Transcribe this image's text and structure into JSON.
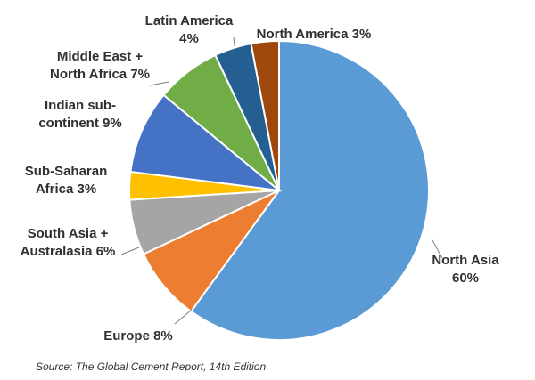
{
  "chart_data": {
    "type": "pie",
    "title": "",
    "start_angle_deg": 0,
    "direction": "clockwise",
    "slices": [
      {
        "label": "North Asia",
        "label_lines": [
          "North Asia",
          "60%"
        ],
        "value": 60,
        "color": "#5B9BD5"
      },
      {
        "label": "Europe",
        "label_lines": [
          "Europe 8%"
        ],
        "value": 8,
        "color": "#ED7D31"
      },
      {
        "label": "South Asia + Australasia",
        "label_lines": [
          "South Asia +",
          "Australasia 6%"
        ],
        "value": 6,
        "color": "#A5A5A5"
      },
      {
        "label": "Sub-Saharan Africa",
        "label_lines": [
          "Sub-Saharan",
          "Africa 3%"
        ],
        "value": 3,
        "color": "#FFC000"
      },
      {
        "label": "Indian sub-continent",
        "label_lines": [
          "Indian sub-",
          "continent 9%"
        ],
        "value": 9,
        "color": "#4472C4"
      },
      {
        "label": "Middle East + North Africa",
        "label_lines": [
          "Middle East +",
          "North Africa 7%"
        ],
        "value": 7,
        "color": "#70AD47"
      },
      {
        "label": "Latin America",
        "label_lines": [
          "Latin America",
          "4%"
        ],
        "value": 4,
        "color": "#255E91"
      },
      {
        "label": "North America",
        "label_lines": [
          "North America 3%"
        ],
        "value": 3,
        "color": "#9E480E"
      }
    ]
  },
  "source": "Source: The Global Cement Report, 14th Edition"
}
